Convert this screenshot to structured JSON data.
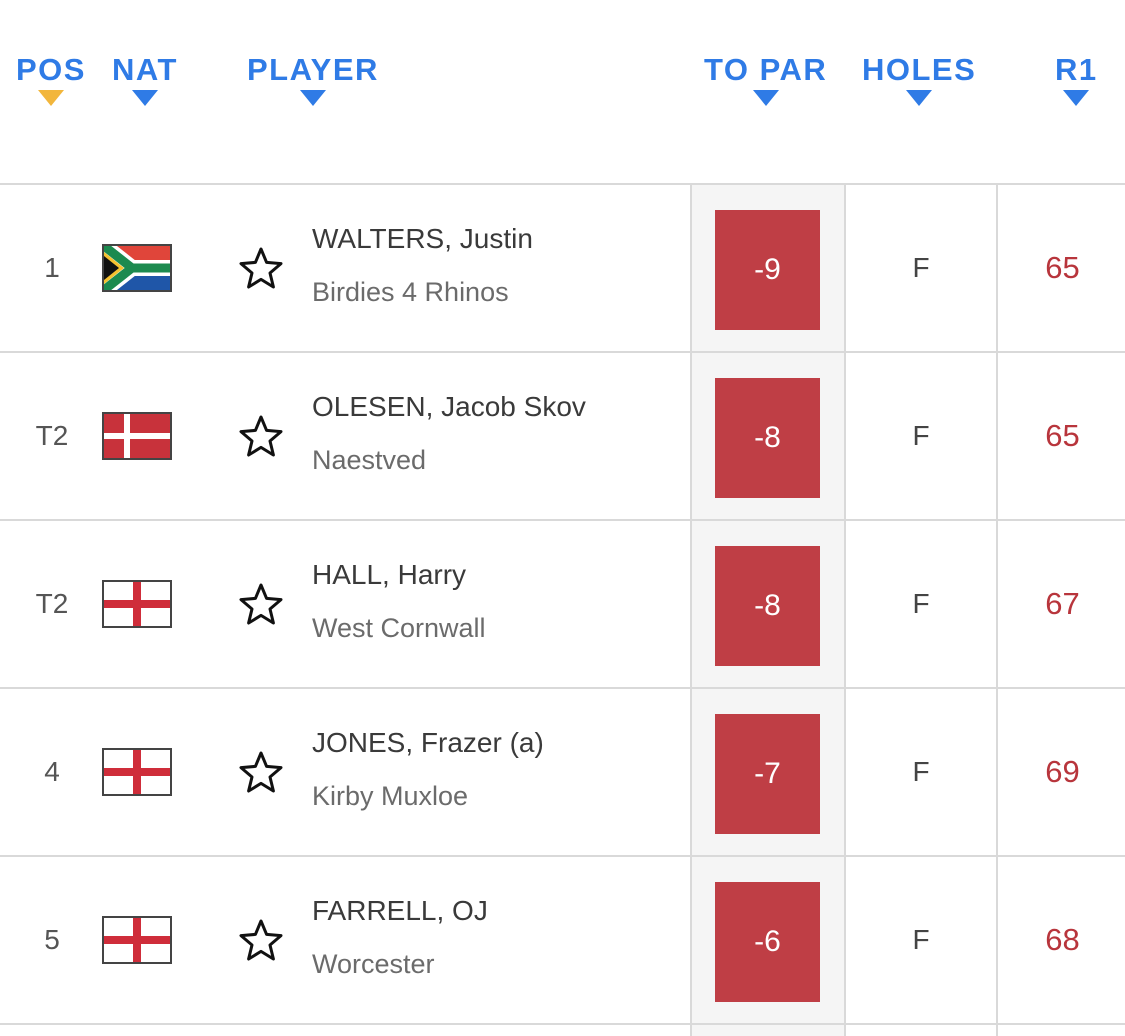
{
  "header": {
    "pos": "POS",
    "nat": "NAT",
    "player": "PLAYER",
    "to_par": "TO PAR",
    "holes": "HOLES",
    "r1": "R1"
  },
  "colors": {
    "header_text": "#2f7be6",
    "active_sort": "#f2b63c",
    "score_box": "#bf3e45",
    "r1_text": "#b8353c"
  },
  "rows": [
    {
      "pos": "1",
      "flag": "south-africa",
      "name": "WALTERS, Justin",
      "club": "Birdies 4 Rhinos",
      "to_par": "-9",
      "holes": "F",
      "r1": "65"
    },
    {
      "pos": "T2",
      "flag": "denmark",
      "name": "OLESEN, Jacob Skov",
      "club": "Naestved",
      "to_par": "-8",
      "holes": "F",
      "r1": "65"
    },
    {
      "pos": "T2",
      "flag": "england",
      "name": "HALL, Harry",
      "club": "West Cornwall",
      "to_par": "-8",
      "holes": "F",
      "r1": "67"
    },
    {
      "pos": "4",
      "flag": "england",
      "name": "JONES, Frazer (a)",
      "club": "Kirby Muxloe",
      "to_par": "-7",
      "holes": "F",
      "r1": "69"
    },
    {
      "pos": "5",
      "flag": "england",
      "name": "FARRELL, OJ",
      "club": "Worcester",
      "to_par": "-6",
      "holes": "F",
      "r1": "68"
    }
  ]
}
